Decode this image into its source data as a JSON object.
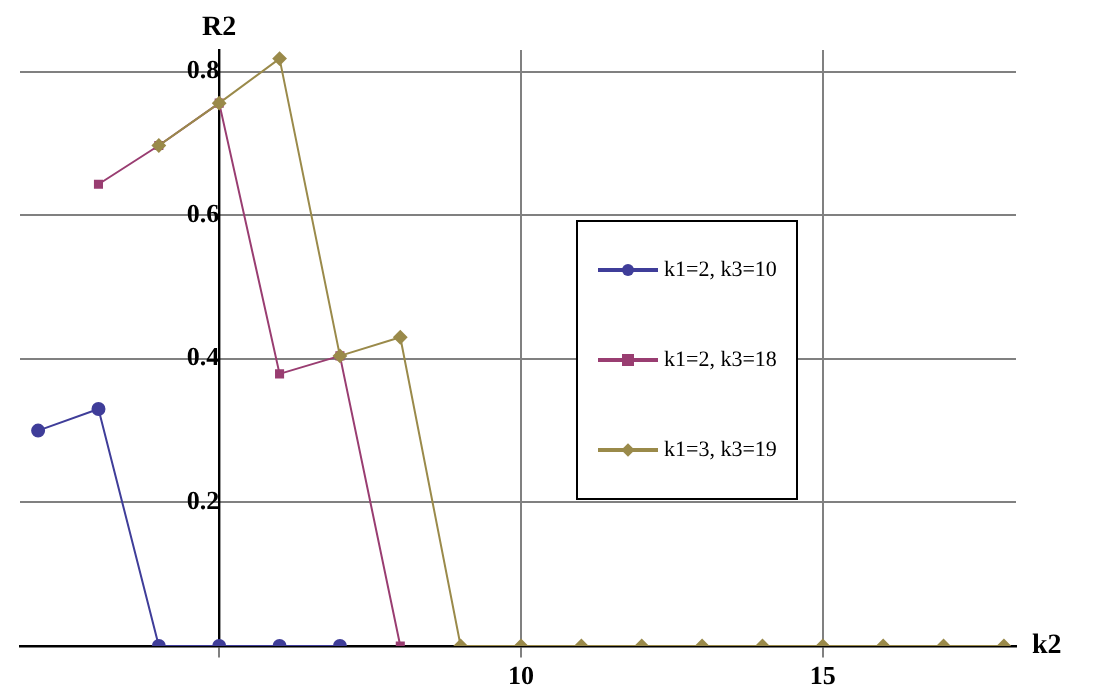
{
  "chart_data": {
    "type": "line",
    "xlabel": "k2",
    "ylabel": "R2",
    "x": [
      2,
      3,
      4,
      5,
      6,
      7,
      8,
      9,
      10,
      11,
      12,
      13,
      14,
      15,
      16,
      17,
      18
    ],
    "series": [
      {
        "name": "k1=2, k3=10",
        "color": "#3f3d99",
        "marker": "circle",
        "values": [
          0.3,
          0.33,
          0,
          0,
          0,
          0,
          null,
          null,
          null,
          null,
          null,
          null,
          null,
          null,
          null,
          null,
          null
        ]
      },
      {
        "name": "k1=2, k3=18",
        "color": "#993d71",
        "marker": "square",
        "values": [
          null,
          0.643,
          0.697,
          0.756,
          0.379,
          0.404,
          0,
          null,
          null,
          null,
          null,
          null,
          null,
          null,
          null,
          null,
          null
        ]
      },
      {
        "name": "k1=3, k3=19",
        "color": "#9a8a4a",
        "marker": "diamond",
        "values": [
          null,
          null,
          0.697,
          0.756,
          0.818,
          0.404,
          0.43,
          0,
          0,
          0,
          0,
          0,
          0,
          0,
          0,
          0,
          0
        ]
      }
    ],
    "xlim": [
      1.7,
      18.2
    ],
    "xticks": [
      {
        "value": 5,
        "label": null
      },
      10,
      15
    ],
    "ylim": [
      0,
      0.83
    ],
    "yticks": [
      {
        "value": 0,
        "label": null
      },
      0.2,
      0.4,
      0.6,
      0.8
    ],
    "grid": true,
    "legend": "right",
    "line_style": "solid"
  }
}
